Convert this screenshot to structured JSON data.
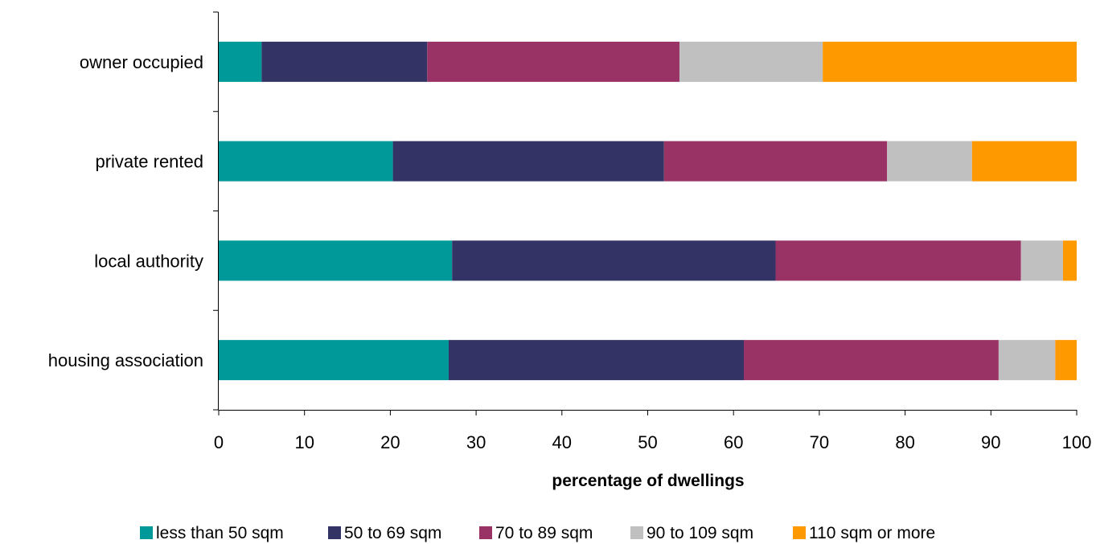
{
  "chart_data": {
    "type": "bar",
    "orientation": "horizontal",
    "stacked": true,
    "categories": [
      "owner occupied",
      "private rented",
      "local authority",
      "housing association"
    ],
    "series": [
      {
        "name": "less than 50 sqm",
        "color": "#009999",
        "values": [
          5.0,
          20.3,
          27.2,
          26.8
        ]
      },
      {
        "name": "50 to 69 sqm",
        "color": "#333366",
        "values": [
          19.3,
          31.6,
          37.7,
          34.4
        ]
      },
      {
        "name": "70 to 89 sqm",
        "color": "#993366",
        "values": [
          29.4,
          26.0,
          28.6,
          29.7
        ]
      },
      {
        "name": "90 to 109 sqm",
        "color": "#C0C0C0",
        "values": [
          16.7,
          9.9,
          4.9,
          6.6
        ]
      },
      {
        "name": "110 sqm or more",
        "color": "#FF9900",
        "values": [
          29.6,
          12.2,
          1.6,
          2.5
        ]
      }
    ],
    "xlabel": "percentage of dwellings",
    "xlim": [
      0,
      100
    ],
    "xticks": [
      "0",
      "10",
      "20",
      "30",
      "40",
      "50",
      "60",
      "70",
      "80",
      "90",
      "100"
    ],
    "grid": false,
    "legend_position": "bottom"
  }
}
